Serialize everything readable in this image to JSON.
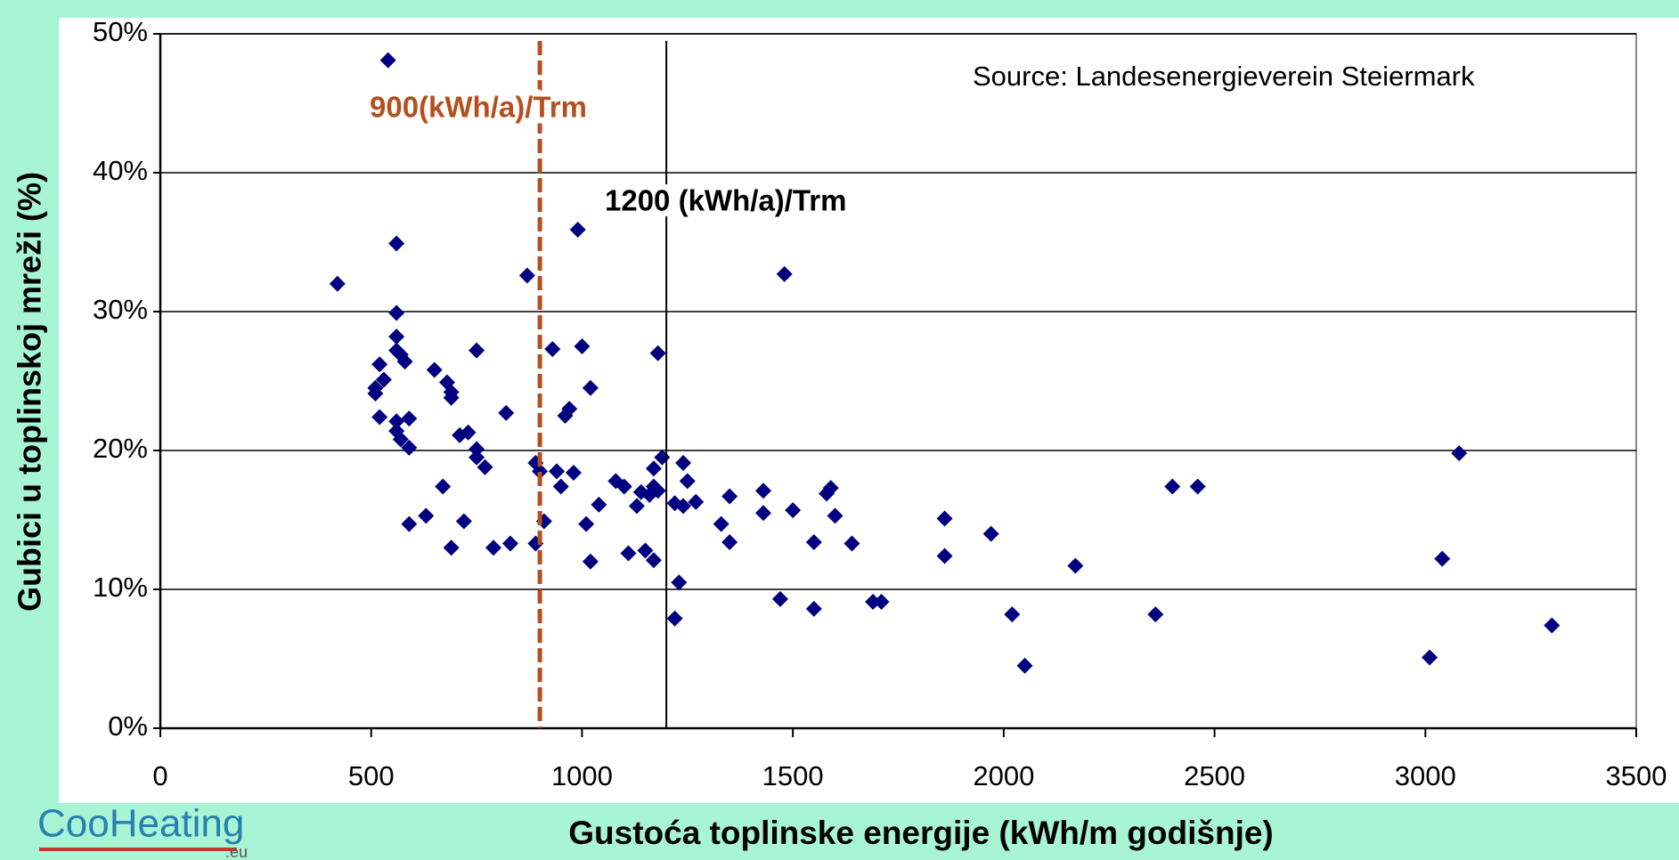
{
  "chart_data": {
    "type": "scatter",
    "xlabel": "Gustoća toplinske energije (kWh/m godišnje)",
    "ylabel": "Gubici u toplinskoj mreži (%)",
    "annotations": [
      "Source: Landesenergieverein Steiermark"
    ],
    "reference_lines": [
      {
        "x": 900,
        "label": "900(kWh/a)/Trm",
        "color": "#b5501e",
        "style": "dashed"
      },
      {
        "x": 1200,
        "label": "1200 (kWh/a)/Trm",
        "color": "#000000",
        "style": "solid"
      }
    ],
    "xlim": [
      0,
      3500
    ],
    "xticks": [
      0,
      500,
      1000,
      1500,
      2000,
      2500,
      3000,
      3500
    ],
    "ylim": [
      0,
      50
    ],
    "yticks": [
      {
        "value": 0,
        "label": "0%"
      },
      {
        "value": 10,
        "label": "10%"
      },
      {
        "value": 20,
        "label": "20%"
      },
      {
        "value": 30,
        "label": "30%"
      },
      {
        "value": 40,
        "label": "40%"
      },
      {
        "value": 50,
        "label": "50%"
      }
    ],
    "grid": true,
    "series": [
      {
        "color": "#000080",
        "x": [
          540,
          420,
          560,
          560,
          560,
          560,
          570,
          580,
          520,
          530,
          510,
          510,
          520,
          560,
          590,
          560,
          570,
          590,
          590,
          630,
          650,
          680,
          690,
          690,
          670,
          690,
          710,
          730,
          720,
          750,
          750,
          750,
          770,
          790,
          830,
          820,
          870,
          890,
          890,
          900,
          910,
          930,
          940,
          950,
          960,
          970,
          980,
          990,
          1000,
          1010,
          1020,
          1020,
          1040,
          1080,
          1100,
          1110,
          1130,
          1140,
          1160,
          1150,
          1170,
          1170,
          1180,
          1180,
          1190,
          1170,
          1220,
          1220,
          1230,
          1240,
          1240,
          1250,
          1270,
          1330,
          1350,
          1350,
          1430,
          1430,
          1480,
          1470,
          1500,
          1550,
          1550,
          1580,
          1590,
          1600,
          1640,
          1690,
          1710,
          1860,
          1860,
          1970,
          2020,
          2050,
          2170,
          2360,
          2400,
          2460,
          3010,
          3040,
          3080,
          3300
        ],
        "values": [
          48.1,
          32.0,
          34.9,
          29.9,
          28.2,
          27.2,
          26.9,
          26.4,
          26.2,
          25.1,
          24.5,
          24.1,
          22.4,
          22.1,
          22.3,
          21.4,
          20.8,
          20.2,
          14.7,
          15.3,
          25.8,
          24.9,
          24.2,
          23.8,
          17.4,
          13.0,
          21.1,
          21.3,
          14.9,
          27.2,
          20.1,
          19.5,
          18.8,
          13.0,
          13.3,
          22.7,
          32.6,
          13.3,
          19.1,
          18.5,
          14.9,
          27.3,
          18.5,
          17.4,
          22.5,
          23.0,
          18.4,
          35.9,
          27.5,
          14.7,
          24.5,
          12.0,
          16.1,
          17.8,
          17.4,
          12.6,
          16.0,
          17.0,
          16.8,
          12.8,
          12.1,
          18.7,
          27.0,
          17.1,
          19.5,
          17.4,
          16.2,
          7.9,
          10.5,
          19.1,
          16.0,
          17.8,
          16.3,
          14.7,
          16.7,
          13.4,
          17.1,
          15.5,
          32.7,
          9.3,
          15.7,
          8.6,
          13.4,
          16.9,
          17.3,
          15.3,
          13.3,
          9.1,
          9.1,
          15.1,
          12.4,
          14.0,
          8.2,
          4.5,
          11.7,
          8.2,
          17.4,
          17.4,
          5.1,
          12.2,
          19.8,
          7.4
        ]
      }
    ]
  },
  "logo": {
    "text": "CooHeating",
    "suffix": ".eu"
  }
}
